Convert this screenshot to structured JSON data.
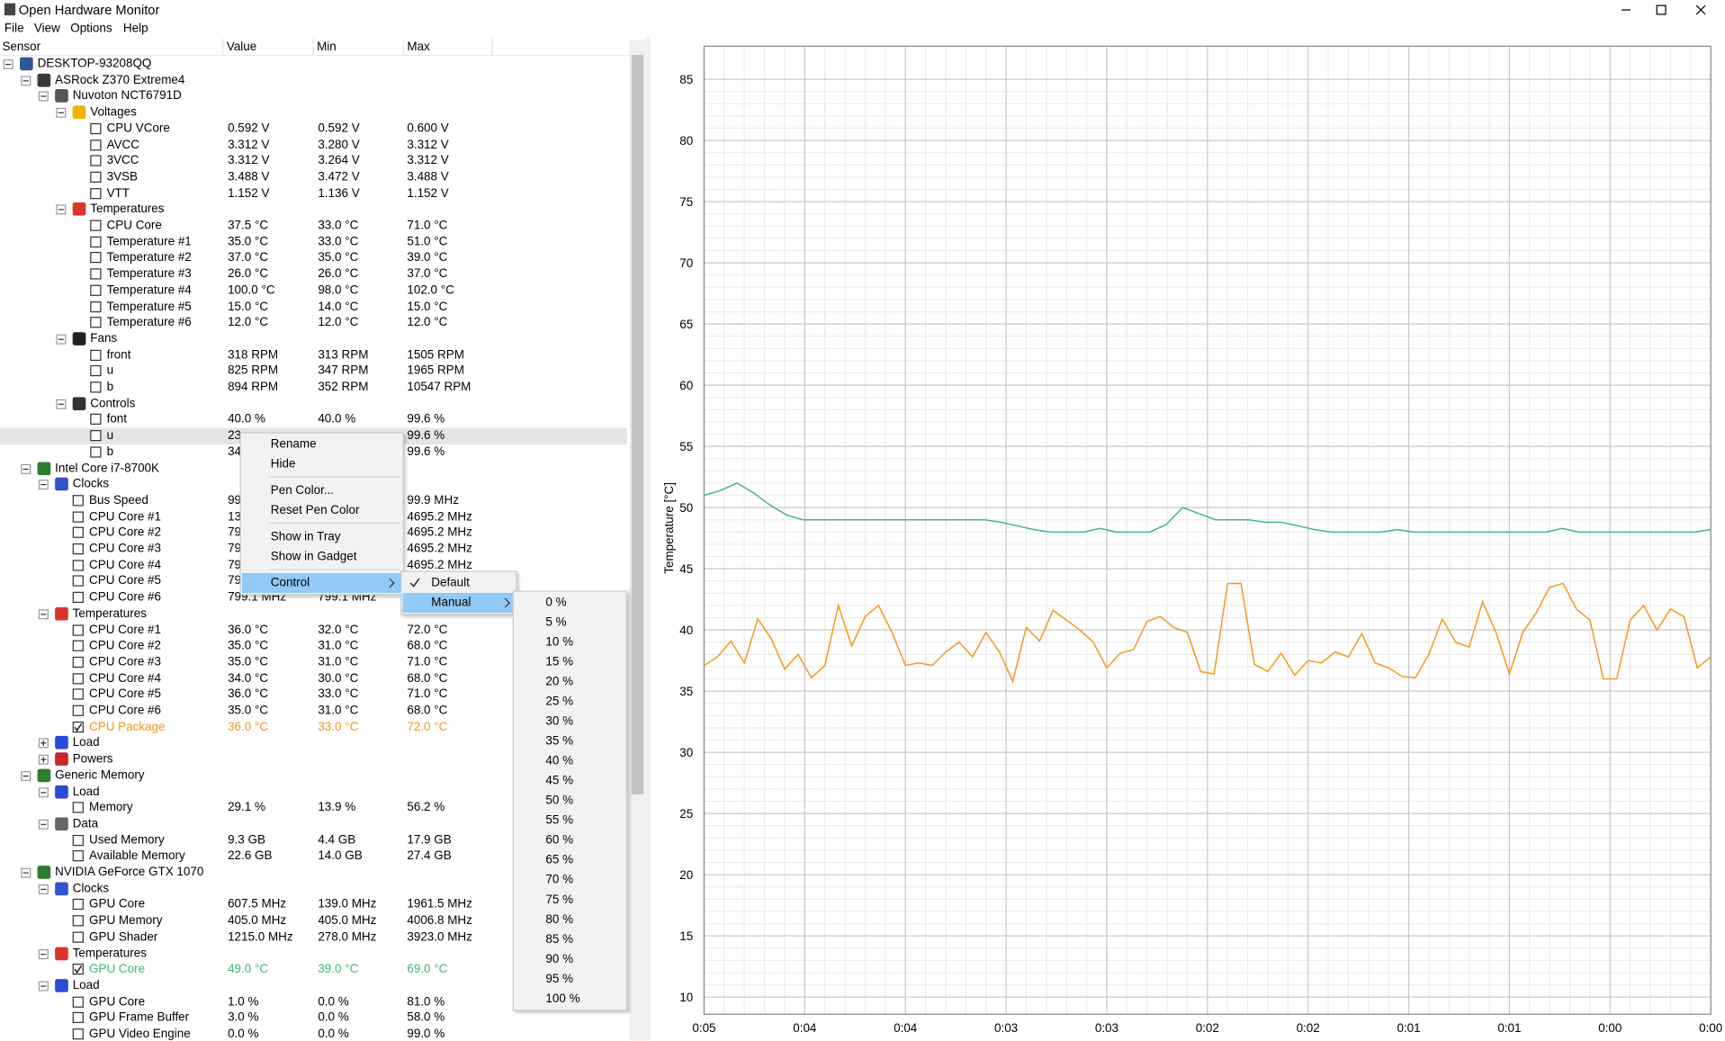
{
  "window": {
    "title": "Open Hardware Monitor"
  },
  "menu": [
    "File",
    "View",
    "Options",
    "Help"
  ],
  "columns": [
    "Sensor",
    "Value",
    "Min",
    "Max"
  ],
  "tree": {
    "label": "DESKTOP-93208QQ",
    "icon_color": "#2b5797",
    "children": [
      {
        "label": "ASRock Z370 Extreme4",
        "icon_color": "#3a3a3a",
        "children": [
          {
            "label": "Nuvoton NCT6791D",
            "icon_color": "#555555",
            "children": [
              {
                "label": "Voltages",
                "icon_color": "#f0b400",
                "children": [
                  {
                    "label": "CPU VCore",
                    "value": "0.592 V",
                    "min": "0.592 V",
                    "max": "0.600 V"
                  },
                  {
                    "label": "AVCC",
                    "value": "3.312 V",
                    "min": "3.280 V",
                    "max": "3.312 V"
                  },
                  {
                    "label": "3VCC",
                    "value": "3.312 V",
                    "min": "3.264 V",
                    "max": "3.312 V"
                  },
                  {
                    "label": "3VSB",
                    "value": "3.488 V",
                    "min": "3.472 V",
                    "max": "3.488 V"
                  },
                  {
                    "label": "VTT",
                    "value": "1.152 V",
                    "min": "1.136 V",
                    "max": "1.152 V"
                  }
                ]
              },
              {
                "label": "Temperatures",
                "icon_color": "#d9342b",
                "children": [
                  {
                    "label": "CPU Core",
                    "value": "37.5 °C",
                    "min": "33.0 °C",
                    "max": "71.0 °C"
                  },
                  {
                    "label": "Temperature #1",
                    "value": "35.0 °C",
                    "min": "33.0 °C",
                    "max": "51.0 °C"
                  },
                  {
                    "label": "Temperature #2",
                    "value": "37.0 °C",
                    "min": "35.0 °C",
                    "max": "39.0 °C"
                  },
                  {
                    "label": "Temperature #3",
                    "value": "26.0 °C",
                    "min": "26.0 °C",
                    "max": "37.0 °C"
                  },
                  {
                    "label": "Temperature #4",
                    "value": "100.0 °C",
                    "min": "98.0 °C",
                    "max": "102.0 °C"
                  },
                  {
                    "label": "Temperature #5",
                    "value": "15.0 °C",
                    "min": "14.0 °C",
                    "max": "15.0 °C"
                  },
                  {
                    "label": "Temperature #6",
                    "value": "12.0 °C",
                    "min": "12.0 °C",
                    "max": "12.0 °C"
                  }
                ]
              },
              {
                "label": "Fans",
                "icon_color": "#222222",
                "children": [
                  {
                    "label": "front",
                    "value": "318 RPM",
                    "min": "313 RPM",
                    "max": "1505 RPM"
                  },
                  {
                    "label": "u",
                    "value": "825 RPM",
                    "min": "347 RPM",
                    "max": "1965 RPM"
                  },
                  {
                    "label": "b",
                    "value": "894 RPM",
                    "min": "352 RPM",
                    "max": "10547 RPM"
                  }
                ]
              },
              {
                "label": "Controls",
                "icon_color": "#333333",
                "children": [
                  {
                    "label": "font",
                    "value": "40.0 %",
                    "min": "40.0 %",
                    "max": "99.6 %"
                  },
                  {
                    "label": "u",
                    "value": "23",
                    "max": "99.6 %",
                    "selected": true
                  },
                  {
                    "label": "b",
                    "value": "34",
                    "max": "99.6 %"
                  }
                ]
              }
            ]
          }
        ]
      },
      {
        "label": "Intel Core i7-8700K",
        "icon_color": "#2e7d32",
        "children": [
          {
            "label": "Clocks",
            "icon_color": "#3355cc",
            "children": [
              {
                "label": "Bus Speed",
                "value": "99",
                "max": "99.9 MHz"
              },
              {
                "label": "CPU Core #1",
                "value": "13",
                "max": "4695.2 MHz"
              },
              {
                "label": "CPU Core #2",
                "value": "79",
                "max": "4695.2 MHz"
              },
              {
                "label": "CPU Core #3",
                "value": "79",
                "max": "4695.2 MHz"
              },
              {
                "label": "CPU Core #4",
                "value": "79",
                "max": "4695.2 MHz"
              },
              {
                "label": "CPU Core #5",
                "value": "79"
              },
              {
                "label": "CPU Core #6",
                "value": "799.1 MHz",
                "min": "799.1 MHz"
              }
            ]
          },
          {
            "label": "Temperatures",
            "icon_color": "#d9342b",
            "children": [
              {
                "label": "CPU Core #1",
                "value": "36.0 °C",
                "min": "32.0 °C",
                "max": "72.0 °C"
              },
              {
                "label": "CPU Core #2",
                "value": "35.0 °C",
                "min": "31.0 °C",
                "max": "68.0 °C"
              },
              {
                "label": "CPU Core #3",
                "value": "35.0 °C",
                "min": "31.0 °C",
                "max": "71.0 °C"
              },
              {
                "label": "CPU Core #4",
                "value": "34.0 °C",
                "min": "30.0 °C",
                "max": "68.0 °C"
              },
              {
                "label": "CPU Core #5",
                "value": "36.0 °C",
                "min": "33.0 °C",
                "max": "71.0 °C"
              },
              {
                "label": "CPU Core #6",
                "value": "35.0 °C",
                "min": "31.0 °C",
                "max": "68.0 °C"
              },
              {
                "label": "CPU Package",
                "value": "36.0 °C",
                "min": "33.0 °C",
                "max": "72.0 °C",
                "checked": true,
                "color": "#f7941d"
              }
            ]
          },
          {
            "label": "Load",
            "icon_color": "#2a4bd7",
            "expanded": false
          },
          {
            "label": "Powers",
            "icon_color": "#c62828",
            "expanded": false
          }
        ]
      },
      {
        "label": "Generic Memory",
        "icon_color": "#2e7d32",
        "children": [
          {
            "label": "Load",
            "icon_color": "#2a4bd7",
            "children": [
              {
                "label": "Memory",
                "value": "29.1 %",
                "min": "13.9 %",
                "max": "56.2 %"
              }
            ]
          },
          {
            "label": "Data",
            "icon_color": "#666666",
            "children": [
              {
                "label": "Used Memory",
                "value": "9.3 GB",
                "min": "4.4 GB",
                "max": "17.9 GB"
              },
              {
                "label": "Available Memory",
                "value": "22.6 GB",
                "min": "14.0 GB",
                "max": "27.4 GB"
              }
            ]
          }
        ]
      },
      {
        "label": "NVIDIA GeForce GTX 1070",
        "icon_color": "#2e7d32",
        "children": [
          {
            "label": "Clocks",
            "icon_color": "#3355cc",
            "children": [
              {
                "label": "GPU Core",
                "value": "607.5 MHz",
                "min": "139.0 MHz",
                "max": "1961.5 MHz"
              },
              {
                "label": "GPU Memory",
                "value": "405.0 MHz",
                "min": "405.0 MHz",
                "max": "4006.8 MHz"
              },
              {
                "label": "GPU Shader",
                "value": "1215.0 MHz",
                "min": "278.0 MHz",
                "max": "3923.0 MHz"
              }
            ]
          },
          {
            "label": "Temperatures",
            "icon_color": "#d9342b",
            "children": [
              {
                "label": "GPU Core",
                "value": "49.0 °C",
                "min": "39.0 °C",
                "max": "69.0 °C",
                "checked": true,
                "color": "#3cb878"
              }
            ]
          },
          {
            "label": "Load",
            "icon_color": "#2a4bd7",
            "children": [
              {
                "label": "GPU Core",
                "value": "1.0 %",
                "min": "0.0 %",
                "max": "81.0 %"
              },
              {
                "label": "GPU Frame Buffer",
                "value": "3.0 %",
                "min": "0.0 %",
                "max": "58.0 %"
              },
              {
                "label": "GPU Video Engine",
                "value": "0.0 %",
                "min": "0.0 %",
                "max": "99.0 %"
              }
            ]
          }
        ]
      }
    ]
  },
  "context_menu": {
    "groups": [
      [
        {
          "label": "Rename"
        },
        {
          "label": "Hide"
        }
      ],
      [
        {
          "label": "Pen Color..."
        },
        {
          "label": "Reset Pen Color"
        }
      ],
      [
        {
          "label": "Show in Tray"
        },
        {
          "label": "Show in Gadget"
        }
      ],
      [
        {
          "label": "Control",
          "open": true
        }
      ]
    ]
  },
  "control_menu": [
    {
      "label": "Default",
      "checked": true
    },
    {
      "label": "Manual",
      "open": true
    }
  ],
  "manual_menu": [
    "0 %",
    "5 %",
    "10 %",
    "15 %",
    "20 %",
    "25 %",
    "30 %",
    "35 %",
    "40 %",
    "45 %",
    "50 %",
    "55 %",
    "60 %",
    "65 %",
    "70 %",
    "75 %",
    "80 %",
    "85 %",
    "90 %",
    "95 %",
    "100 %"
  ],
  "chart_data": {
    "type": "line",
    "ylabel": "Temperature [°C]",
    "ylim": [
      8.6,
      87.7
    ],
    "yticks": [
      10,
      15,
      20,
      25,
      30,
      35,
      40,
      45,
      50,
      55,
      60,
      65,
      70,
      75,
      80,
      85
    ],
    "grid": true,
    "xtick_labels": [
      "0:05",
      "0:04",
      "0:04",
      "0:03",
      "0:03",
      "0:02",
      "0:02",
      "0:01",
      "0:01",
      "0:00",
      "0:00"
    ],
    "series": [
      {
        "name": "GPU Core",
        "color": "#3cb878",
        "values": [
          51.0,
          51.4,
          52.0,
          51.2,
          50.2,
          49.4,
          49.0,
          49.0,
          49.0,
          49.0,
          49.0,
          49.0,
          49.0,
          49.0,
          49.0,
          49.0,
          49.0,
          49.0,
          48.8,
          48.5,
          48.2,
          48.0,
          48.0,
          48.0,
          48.3,
          48.0,
          48.0,
          48.0,
          48.6,
          50.0,
          49.5,
          49.0,
          49.0,
          49.0,
          48.8,
          48.8,
          48.5,
          48.2,
          48.0,
          48.0,
          48.0,
          48.0,
          48.2,
          48.0,
          48.0,
          48.0,
          48.0,
          48.0,
          48.0,
          48.0,
          48.0,
          48.0,
          48.3,
          48.0,
          48.0,
          48.0,
          48.0,
          48.0,
          48.0,
          48.0,
          48.0,
          48.2
        ]
      },
      {
        "name": "CPU Package",
        "color": "#f7941d",
        "values": [
          37.1,
          37.8,
          39.1,
          37.3,
          40.9,
          39.3,
          36.8,
          38.0,
          36.1,
          37.1,
          42.0,
          38.7,
          41.1,
          42.0,
          39.8,
          37.1,
          37.3,
          37.1,
          38.2,
          39.0,
          37.8,
          39.8,
          38.2,
          35.8,
          40.2,
          39.1,
          41.6,
          40.8,
          40.0,
          39.0,
          36.9,
          38.1,
          38.4,
          40.7,
          41.1,
          40.2,
          39.8,
          36.6,
          36.4,
          43.8,
          43.8,
          37.2,
          36.6,
          38.1,
          36.3,
          37.5,
          37.3,
          38.2,
          37.8,
          39.7,
          37.3,
          36.9,
          36.2,
          36.1,
          38.0,
          40.9,
          39.0,
          38.6,
          42.3,
          39.8,
          36.4,
          39.8,
          41.4,
          43.5,
          43.8,
          41.7,
          40.8,
          36.0,
          36.0,
          40.8,
          42.0,
          40.0,
          41.7,
          41.1,
          36.9,
          37.8
        ]
      }
    ]
  }
}
